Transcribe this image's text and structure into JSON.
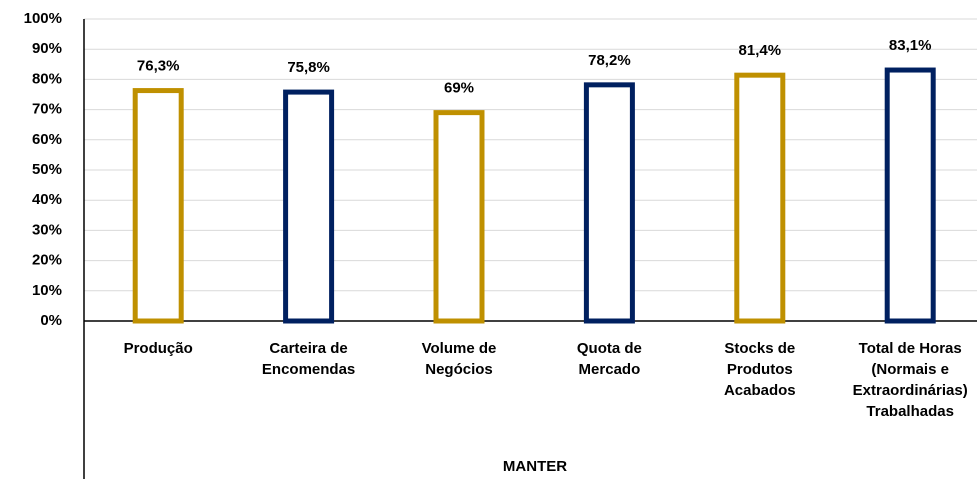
{
  "chart_data": {
    "type": "bar",
    "categories": [
      "Produção",
      "Carteira de\nEncomendas",
      "Volume de\nNegócios",
      "Quota de\nMercado",
      "Stocks de\nProdutos\nAcabados",
      "Total de Horas\n(Normais e\nExtraordinárias)\nTrabalhadas"
    ],
    "group_label": "MANTER",
    "values": [
      76.3,
      75.8,
      69,
      78.2,
      81.4,
      83.1
    ],
    "value_labels": [
      "76,3%",
      "75,8%",
      "69%",
      "78,2%",
      "81,4%",
      "83,1%"
    ],
    "colors": [
      "#bf9000",
      "#002060",
      "#bf9000",
      "#002060",
      "#bf9000",
      "#002060"
    ],
    "ylim": [
      0,
      100
    ],
    "yticks": [
      {
        "value": 0,
        "label": "0%"
      },
      {
        "value": 10,
        "label": "10%"
      },
      {
        "value": 20,
        "label": "20%"
      },
      {
        "value": 30,
        "label": "30%"
      },
      {
        "value": 40,
        "label": "40%"
      },
      {
        "value": 50,
        "label": "50%"
      },
      {
        "value": 60,
        "label": "60%"
      },
      {
        "value": 70,
        "label": "70%"
      },
      {
        "value": 80,
        "label": "80%"
      },
      {
        "value": 90,
        "label": "90%"
      },
      {
        "value": 100,
        "label": "100%"
      }
    ],
    "grid": true
  }
}
